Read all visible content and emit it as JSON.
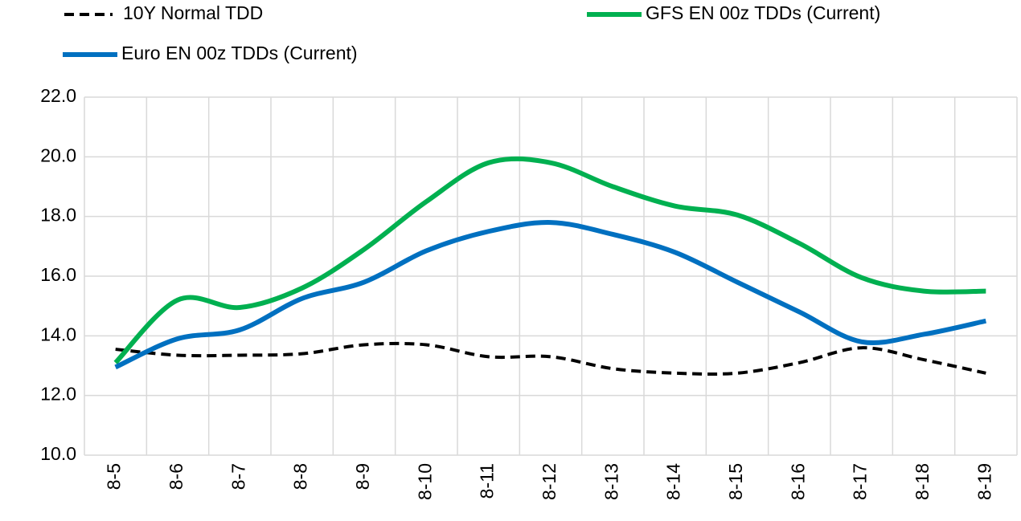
{
  "chart_data": {
    "type": "line",
    "categories": [
      "8-5",
      "8-6",
      "8-7",
      "8-8",
      "8-9",
      "8-10",
      "8-11",
      "8-12",
      "8-13",
      "8-14",
      "8-15",
      "8-16",
      "8-17",
      "8-18",
      "8-19"
    ],
    "series": [
      {
        "name": "10Y Normal TDD",
        "color": "#000000",
        "dashed": true,
        "values": [
          13.55,
          13.35,
          13.35,
          13.4,
          13.7,
          13.7,
          13.3,
          13.3,
          12.9,
          12.75,
          12.75,
          13.1,
          13.6,
          13.2,
          12.75
        ]
      },
      {
        "name": "GFS EN 00z TDDs (Current)",
        "color": "#00b050",
        "dashed": false,
        "values": [
          13.1,
          15.2,
          14.95,
          15.6,
          16.9,
          18.5,
          19.8,
          19.8,
          19.0,
          18.35,
          18.05,
          17.1,
          15.95,
          15.5,
          15.5
        ]
      },
      {
        "name": "Euro EN 00z TDDs (Current)",
        "color": "#0070c0",
        "dashed": false,
        "values": [
          12.95,
          13.9,
          14.2,
          15.25,
          15.8,
          16.85,
          17.5,
          17.8,
          17.4,
          16.8,
          15.8,
          14.8,
          13.8,
          14.05,
          14.5
        ]
      }
    ],
    "ylim": [
      10,
      22
    ],
    "yticks": [
      {
        "value": 10,
        "label": "10.0"
      },
      {
        "value": 12,
        "label": "12.0"
      },
      {
        "value": 14,
        "label": "14.0"
      },
      {
        "value": 16,
        "label": "16.0"
      },
      {
        "value": 18,
        "label": "18.0"
      },
      {
        "value": 20,
        "label": "20.0"
      },
      {
        "value": 22,
        "label": "22.0"
      }
    ],
    "grid": true,
    "smooth": true,
    "legend": "top"
  }
}
